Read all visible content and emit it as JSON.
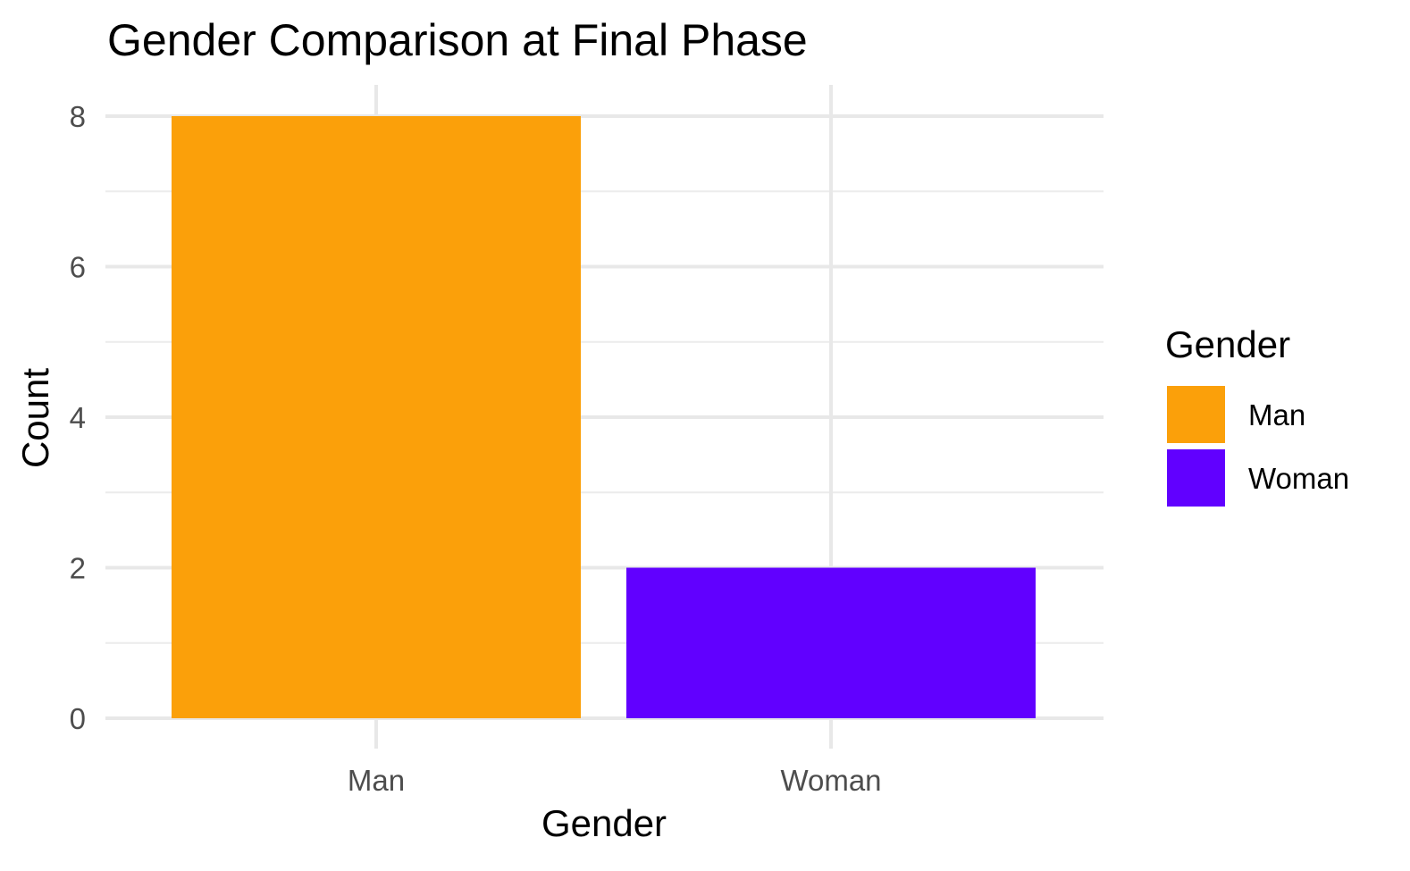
{
  "chart_data": {
    "type": "bar",
    "title": "Gender Comparison at Final Phase",
    "xlabel": "Gender",
    "ylabel": "Count",
    "categories": [
      "Man",
      "Woman"
    ],
    "values": [
      8,
      2
    ],
    "colors": [
      "#FBA00A",
      "#6100FF"
    ],
    "ylim": [
      0,
      8
    ],
    "yticks": [
      0,
      2,
      4,
      6,
      8
    ],
    "grid": true,
    "legend": {
      "title": "Gender",
      "placement": "right",
      "entries": [
        {
          "label": "Man",
          "color": "#FBA00A"
        },
        {
          "label": "Woman",
          "color": "#6100FF"
        }
      ]
    }
  }
}
